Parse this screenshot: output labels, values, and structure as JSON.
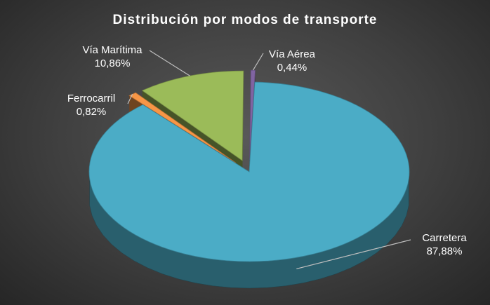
{
  "chart_data": {
    "type": "pie",
    "title": "Distribución por modos de transporte",
    "style": "3d-exploded",
    "legend": "none",
    "slices": [
      {
        "label": "Carretera",
        "value": 87.88,
        "value_label": "87,88%",
        "color": "#4bacc6"
      },
      {
        "label": "Ferrocarril",
        "value": 0.82,
        "value_label": "0,82%",
        "color": "#f79646"
      },
      {
        "label": "Vía Marítima",
        "value": 10.86,
        "value_label": "10,86%",
        "color": "#9bbb59"
      },
      {
        "label": "Vía Aérea",
        "value": 0.44,
        "value_label": "0,44%",
        "color": "#8064a2"
      }
    ]
  }
}
